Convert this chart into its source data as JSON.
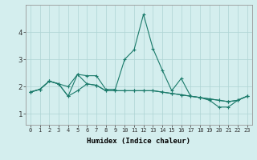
{
  "xlabel": "Humidex (Indice chaleur)",
  "x": [
    0,
    1,
    2,
    3,
    4,
    5,
    6,
    7,
    8,
    9,
    10,
    11,
    12,
    13,
    14,
    15,
    16,
    17,
    18,
    19,
    20,
    21,
    22,
    23
  ],
  "line1": [
    1.8,
    1.9,
    2.2,
    2.1,
    2.0,
    2.45,
    2.4,
    2.4,
    1.9,
    1.9,
    3.0,
    3.35,
    4.65,
    3.4,
    2.6,
    1.85,
    2.3,
    1.65,
    1.6,
    1.5,
    1.25,
    1.25,
    1.5,
    1.65
  ],
  "line2": [
    1.8,
    1.9,
    2.2,
    2.1,
    1.65,
    1.85,
    2.1,
    2.05,
    1.85,
    1.85,
    1.85,
    1.85,
    1.85,
    1.85,
    1.8,
    1.75,
    1.7,
    1.65,
    1.6,
    1.55,
    1.5,
    1.45,
    1.5,
    1.65
  ],
  "line3": [
    1.8,
    1.9,
    2.2,
    2.1,
    1.65,
    2.45,
    2.1,
    2.05,
    1.85,
    1.85,
    1.85,
    1.85,
    1.85,
    1.85,
    1.8,
    1.75,
    1.7,
    1.65,
    1.6,
    1.55,
    1.5,
    1.45,
    1.5,
    1.65
  ],
  "bg_color": "#d4eeee",
  "line_color": "#1a7a6a",
  "grid_color": "#aed4d4",
  "ylim": [
    0.6,
    5.0
  ],
  "xlim": [
    -0.5,
    23.5
  ]
}
